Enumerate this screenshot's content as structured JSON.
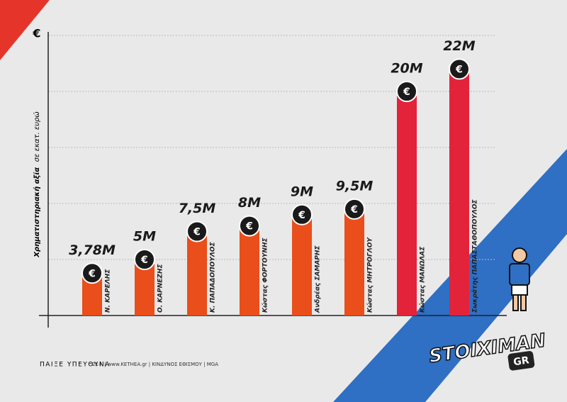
{
  "chart_data": {
    "type": "bar",
    "y_label_bold": "Χρηματιστηριακή αξία",
    "y_label_rest": "σε εκατ. ευρώ",
    "unit_symbol": "€",
    "categories": [
      "Ν. ΚΑΡΕΛΗΣ",
      "Ο. ΚΑΡΝΕΖΗΣ",
      "Κ. ΠΑΠΑΔΟΠΟΥΛΟΣ",
      "Κώστας ΦΟΡΤΟΥΝΗΣ",
      "Ανδρέας ΣΑΜΑΡΗΣ",
      "Κώστας ΜΗΤΡΟΓΛΟΥ",
      "Κώστας ΜΑΝΩΛΑΣ",
      "Σωκράτης ΠΑΠΑΣΤΑΘΟΠΟΥΛΟΣ"
    ],
    "values": [
      3.78,
      5,
      7.5,
      8,
      9,
      9.5,
      20,
      22
    ],
    "value_labels": [
      "3,78M",
      "5M",
      "7,5M",
      "8M",
      "9M",
      "9,5M",
      "20M",
      "22M"
    ],
    "colors": [
      "#e94e1b",
      "#e94e1b",
      "#e94e1b",
      "#e94e1b",
      "#e94e1b",
      "#e94e1b",
      "#e2233a",
      "#e2233a"
    ],
    "ylim": [
      0,
      25
    ],
    "yticks": [
      0,
      5,
      10,
      15,
      20,
      25
    ],
    "grid": true
  },
  "footer": {
    "slogan": "ΠΑΙΞΕ ΥΠΕΥΘΥΝΑ",
    "notice": "21+ | www.KETHEA.gr | ΚΙΝΔΥΝΟΣ ΕΘΙΣΜΟΥ | MGA"
  },
  "logo": {
    "name": "STOIXIMAN",
    "suffix": "GR"
  }
}
